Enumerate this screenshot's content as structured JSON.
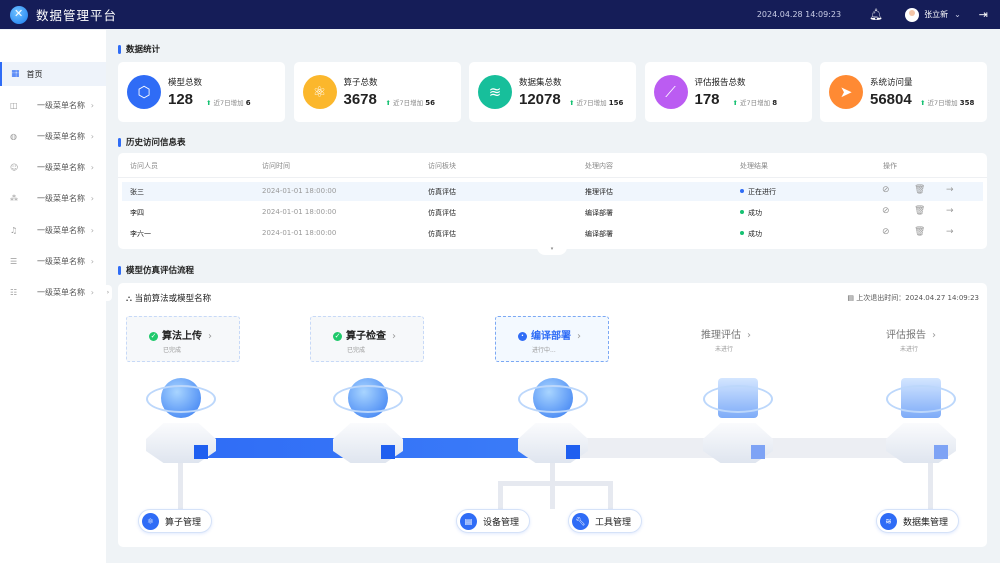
{
  "header": {
    "title": "数据管理平台",
    "datetime": "2024.04.28 14:09:23",
    "user": "张立新"
  },
  "sidebar": {
    "home": "首页",
    "items": [
      {
        "label": "一级菜单名称",
        "icon": "layout-icon"
      },
      {
        "label": "一级菜单名称",
        "icon": "globe-icon"
      },
      {
        "label": "一级菜单名称",
        "icon": "smile-icon"
      },
      {
        "label": "一级菜单名称",
        "icon": "nodes-icon"
      },
      {
        "label": "一级菜单名称",
        "icon": "music-icon"
      },
      {
        "label": "一级菜单名称",
        "icon": "database-icon"
      },
      {
        "label": "一级菜单名称",
        "icon": "sliders-icon"
      }
    ]
  },
  "stats": {
    "title": "数据统计",
    "items": [
      {
        "label": "模型总数",
        "value": "128",
        "inc_label": "近7日增加",
        "inc": "6",
        "color": "#2f6cf6",
        "icon": "cube-icon"
      },
      {
        "label": "算子总数",
        "value": "3678",
        "inc_label": "近7日增加",
        "inc": "56",
        "color": "#fbb72c",
        "icon": "operator-icon"
      },
      {
        "label": "数据集总数",
        "value": "12078",
        "inc_label": "近7日增加",
        "inc": "156",
        "color": "#17bf9b",
        "icon": "layers-icon"
      },
      {
        "label": "评估报告总数",
        "value": "178",
        "inc_label": "近7日增加",
        "inc": "8",
        "color": "#bb5cf2",
        "icon": "chart-icon"
      },
      {
        "label": "系统访问量",
        "value": "56804",
        "inc_label": "近7日增加",
        "inc": "358",
        "color": "#ff8a33",
        "icon": "send-icon"
      }
    ]
  },
  "history": {
    "title": "历史访问信息表",
    "columns": [
      "访问人员",
      "访问时间",
      "访问板块",
      "处理内容",
      "处理结果",
      "操作"
    ],
    "rows": [
      {
        "person": "张三",
        "time": "2024-01-01 18:00:00",
        "module": "仿真评估",
        "content": "推理评估",
        "result": "正在进行",
        "status_color": "#2f6cf6"
      },
      {
        "person": "李四",
        "time": "2024-01-01 18:00:00",
        "module": "仿真评估",
        "content": "编译部署",
        "result": "成功",
        "status_color": "#16c172"
      },
      {
        "person": "李六一",
        "time": "2024-01-01 18:00:00",
        "module": "仿真评估",
        "content": "编译部署",
        "result": "成功",
        "status_color": "#16c172"
      }
    ]
  },
  "flow": {
    "title": "模型仿真评估流程",
    "current": "当前算法或模型名称",
    "last_exit_label": "上次退出时间：",
    "last_exit": "2024.04.27 14:09:23",
    "steps": [
      {
        "name": "算法上传",
        "status": "已完成"
      },
      {
        "name": "算子检查",
        "status": "已完成"
      },
      {
        "name": "编译部署",
        "status": "进行中..."
      },
      {
        "name": "推理评估",
        "status": "未进行"
      },
      {
        "name": "评估报告",
        "status": "未进行"
      }
    ],
    "modules": [
      "算子管理",
      "设备管理",
      "工具管理",
      "数据集管理"
    ]
  }
}
